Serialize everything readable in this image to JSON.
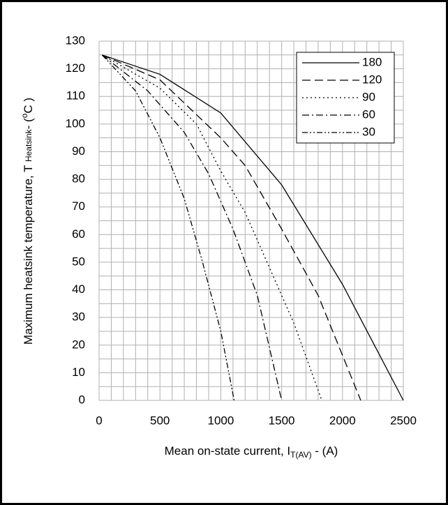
{
  "chart_data": {
    "type": "line",
    "xlabel": {
      "main": "Mean on-state current, I",
      "sub": "T(AV)",
      "end": " - (A)"
    },
    "ylabel": {
      "main": "Maximum heatsink temperature, T ",
      "sub": "Heatsink",
      "end": "- (",
      "sup": "o",
      "tail": "C )"
    },
    "xlim": [
      0,
      2500
    ],
    "ylim": [
      0,
      130
    ],
    "xticks": [
      0,
      500,
      1000,
      1500,
      2000,
      2500
    ],
    "yticks": [
      0,
      10,
      20,
      30,
      40,
      50,
      60,
      70,
      80,
      90,
      100,
      110,
      120,
      130
    ],
    "xgrid": [
      0,
      100,
      200,
      300,
      400,
      500,
      600,
      700,
      800,
      900,
      1000,
      1100,
      1200,
      1300,
      1400,
      1500,
      1600,
      1700,
      1800,
      1900,
      2000,
      2100,
      2200,
      2300,
      2400,
      2500
    ],
    "ygrid": [
      0,
      5,
      10,
      15,
      20,
      25,
      30,
      35,
      40,
      45,
      50,
      55,
      60,
      65,
      70,
      75,
      80,
      85,
      90,
      95,
      100,
      105,
      110,
      115,
      120,
      125,
      130
    ],
    "grid": true,
    "legend": "upper right",
    "series": [
      {
        "name": "180",
        "color": "#000000",
        "dash": "none",
        "x": [
          25,
          500,
          1000,
          1500,
          2000,
          2500
        ],
        "values": [
          125,
          118,
          104,
          78,
          42,
          0
        ]
      },
      {
        "name": "120",
        "color": "#000000",
        "dash": "12 6",
        "x": [
          25,
          500,
          1000,
          1200,
          1500,
          1800,
          2150
        ],
        "values": [
          125,
          116,
          95,
          85,
          62,
          38,
          0
        ]
      },
      {
        "name": "90",
        "color": "#000000",
        "dash": "2 4",
        "x": [
          25,
          500,
          800,
          1000,
          1200,
          1400,
          1600,
          1830
        ],
        "values": [
          125,
          113,
          100,
          83,
          68,
          48,
          28,
          0
        ]
      },
      {
        "name": "60",
        "color": "#000000",
        "dash": "10 4 2 4",
        "x": [
          25,
          400,
          700,
          900,
          1100,
          1300,
          1500
        ],
        "values": [
          125,
          112,
          97,
          82,
          62,
          38,
          0
        ]
      },
      {
        "name": "30",
        "color": "#000000",
        "dash": "8 3 2 3 2 3",
        "x": [
          25,
          300,
          500,
          700,
          850,
          1000,
          1110
        ],
        "values": [
          125,
          112,
          95,
          73,
          50,
          25,
          0
        ]
      }
    ]
  }
}
